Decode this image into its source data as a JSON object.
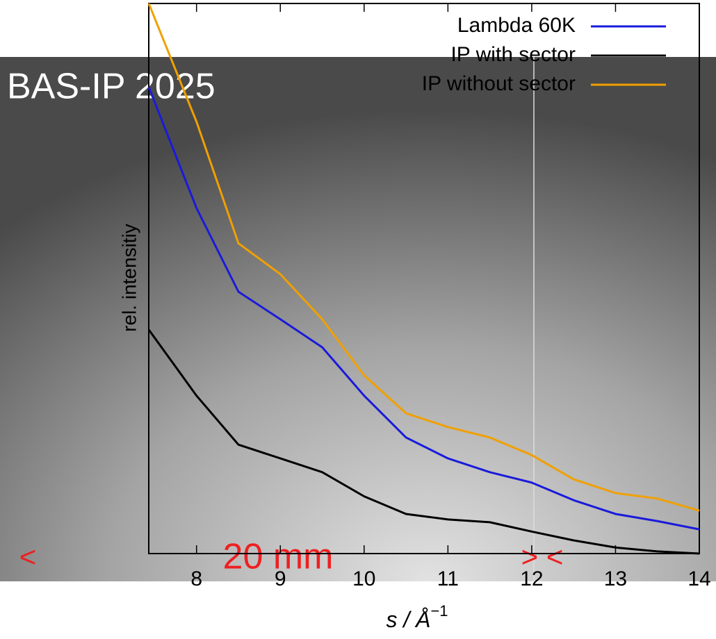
{
  "chart_data": {
    "type": "line",
    "image_title": "BAS-IP 2025",
    "annotations": [
      "<",
      "20 mm",
      "> <"
    ],
    "ylabel": "rel. intensitiy",
    "xlabel": "s / Å",
    "xlabel_exponent": "−1",
    "x": [
      7.43,
      8,
      8.5,
      9,
      9.5,
      10,
      10.5,
      11,
      11.5,
      12,
      12.5,
      13,
      13.5,
      14
    ],
    "series": [
      {
        "name": "Lambda 60K",
        "color": "#1a1adb",
        "values": [
          84.8,
          62.8,
          47.6,
          42.6,
          37.5,
          28.7,
          21.1,
          17.3,
          14.8,
          12.9,
          9.7,
          7.2,
          5.9,
          4.4
        ]
      },
      {
        "name": "IP with sector",
        "color": "#000000",
        "values": [
          40.7,
          28.7,
          19.8,
          17.3,
          14.8,
          10.4,
          7.2,
          6.2,
          5.7,
          4.0,
          2.4,
          1.1,
          0.4,
          0
        ]
      },
      {
        "name": "IP without sector",
        "color": "#f0a000",
        "values": [
          100,
          78.5,
          56.4,
          50.8,
          42.6,
          32.4,
          25.5,
          23,
          21.1,
          17.9,
          13.5,
          11,
          10,
          7.8
        ]
      }
    ],
    "xlim": [
      7.43,
      14
    ],
    "ylim": [
      0,
      100
    ],
    "xticks": [
      8,
      9,
      10,
      11,
      12,
      13,
      14
    ]
  }
}
